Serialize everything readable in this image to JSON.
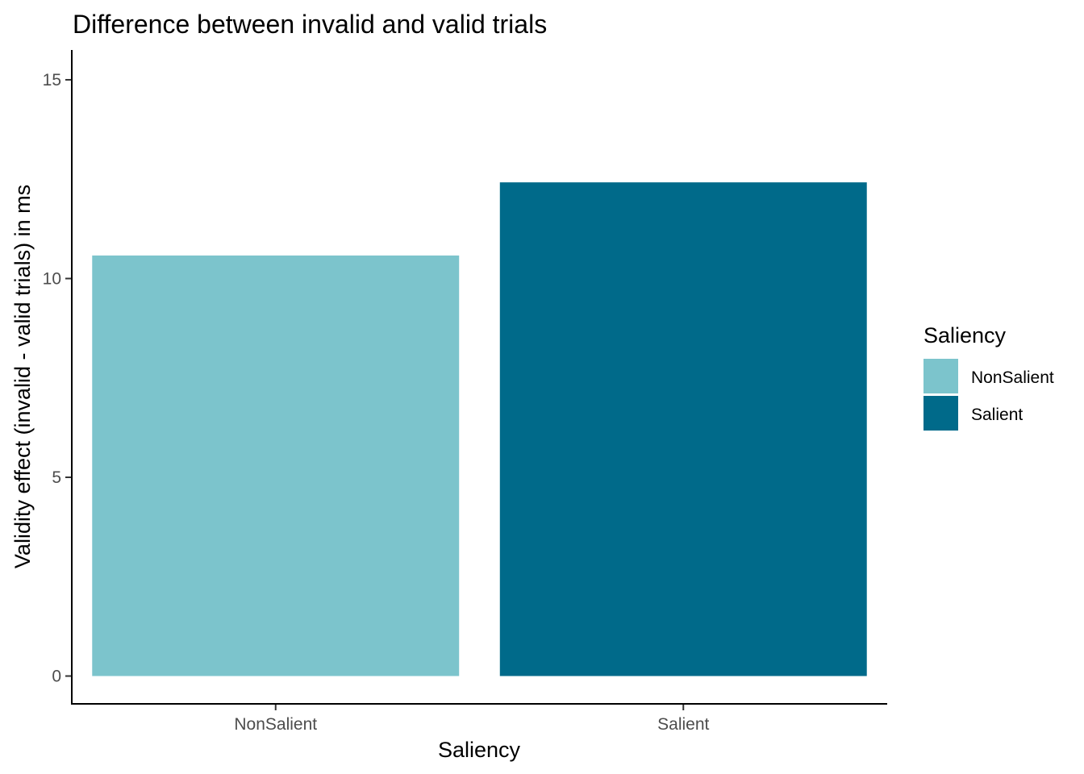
{
  "chart_data": {
    "type": "bar",
    "title": "Difference between invalid and valid trials",
    "xlabel": "Saliency",
    "ylabel": "Validity effect (invalid - valid trials) in ms",
    "categories": [
      "NonSalient",
      "Salient"
    ],
    "values": [
      10.58,
      12.42
    ],
    "colors": [
      "#7cc4cc",
      "#006a8a"
    ],
    "ylim": [
      -0.7,
      15.75
    ],
    "yticks": [
      0,
      5,
      10,
      15
    ],
    "grid": false,
    "legend": {
      "title": "Saliency",
      "position": "right",
      "entries": [
        "NonSalient",
        "Salient"
      ]
    }
  }
}
